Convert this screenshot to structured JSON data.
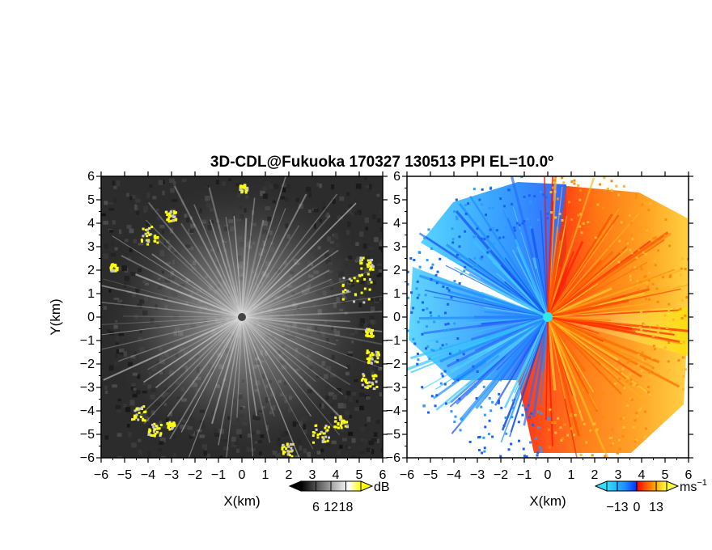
{
  "figure": {
    "title": "3D-CDL@Fukuoka 170327 130513 PPI EL=10.0º"
  },
  "chart_data": [
    {
      "type": "heatmap",
      "panel": "left",
      "variable": "signal-to-noise ratio",
      "xlabel": "X(km)",
      "ylabel": "Y(km)",
      "xlim": [
        -6,
        6
      ],
      "ylim": [
        -6,
        6
      ],
      "x_ticks": [
        "−6",
        "−5",
        "−4",
        "−3",
        "−2",
        "−1",
        "0",
        "1",
        "2",
        "3",
        "4",
        "5",
        "6"
      ],
      "y_ticks": [
        "6",
        "5",
        "4",
        "3",
        "2",
        "1",
        "0",
        "−1",
        "−2",
        "−3",
        "−4",
        "−5",
        "−6"
      ],
      "colorbar": {
        "unit": "dB",
        "tick_labels": [
          "6",
          "12",
          "18"
        ],
        "tick_values": [
          6,
          12,
          18
        ],
        "range": [
          0,
          24
        ],
        "colors": [
          "#000000",
          "#ffffff",
          "#ffff00"
        ]
      },
      "features": {
        "background": "dark gray noise",
        "radial_beams": "light gray spokes from origin",
        "edge_echoes": "yellow patches near range edge"
      }
    },
    {
      "type": "heatmap",
      "panel": "right",
      "variable": "radial velocity",
      "xlabel": "X(km)",
      "ylabel": "",
      "xlim": [
        -6,
        6
      ],
      "ylim": [
        -6,
        6
      ],
      "x_ticks": [
        "−6",
        "−5",
        "−4",
        "−3",
        "−2",
        "−1",
        "0",
        "1",
        "2",
        "3",
        "4",
        "5",
        "6"
      ],
      "y_ticks": [
        "6",
        "5",
        "4",
        "3",
        "2",
        "1",
        "0",
        "−1",
        "−2",
        "−3",
        "−4",
        "−5",
        "−6"
      ],
      "colorbar": {
        "unit_base": "ms",
        "unit_exp": "−1",
        "tick_labels": [
          "−13",
          "0",
          "13"
        ],
        "tick_values": [
          -13,
          0,
          13
        ],
        "range": [
          -20,
          20
        ],
        "colors": [
          "#30e0ff",
          "#1e90ff",
          "#0030ff",
          "#ff0000",
          "#ff8a00",
          "#ffff40"
        ]
      },
      "features": {
        "west_half": "negative velocity (blue)",
        "east_half": "positive velocity (red to yellow)",
        "center_marker": "cyan dot at origin"
      }
    }
  ]
}
